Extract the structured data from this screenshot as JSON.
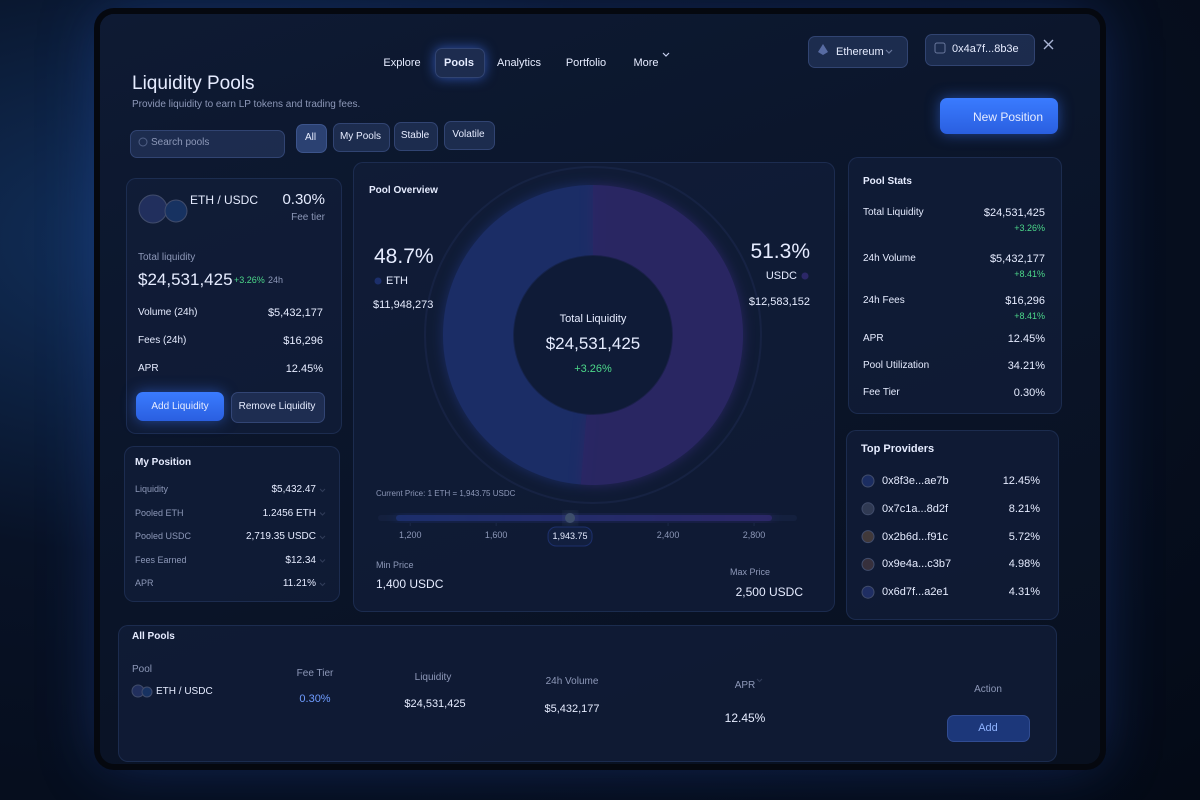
{
  "nav": {
    "items": [
      "Explore",
      "Pools",
      "Analytics",
      "Portfolio",
      "More"
    ],
    "active": 1
  },
  "network": "Ethereum",
  "wallet": "0x4a7f...8b3e",
  "header": {
    "title": "Liquidity Pools",
    "subtitle": "Provide liquidity to earn LP tokens and trading fees.",
    "new_position": "New Position"
  },
  "filters": {
    "search_placeholder": "Search pools",
    "tabs": [
      "All",
      "My Pools",
      "Stable",
      "Volatile"
    ],
    "active": 0
  },
  "pool_card": {
    "pair": "ETH / USDC",
    "fee": "0.30%",
    "fee_label": "Fee tier",
    "total_liquidity_label": "Total liquidity",
    "total_liquidity": "$24,531,425",
    "change": "+3.26%",
    "period": "24h",
    "rows": [
      [
        "Volume (24h)",
        "$5,432,177"
      ],
      [
        "Fees (24h)",
        "$16,296"
      ],
      [
        "APR",
        "12.45%"
      ]
    ],
    "buttons": [
      "Add Liquidity",
      "Remove Liquidity"
    ]
  },
  "my_position": {
    "title": "My Position",
    "rows": [
      [
        "Liquidity",
        "$5,432.47"
      ],
      [
        "Pooled ETH",
        "1.2456 ETH"
      ],
      [
        "Pooled USDC",
        "2,719.35 USDC"
      ],
      [
        "Fees Earned",
        "$12.34"
      ],
      [
        "APR",
        "11.21%"
      ]
    ]
  },
  "overview": {
    "title": "Pool Overview",
    "center_label": "Total Liquidity",
    "center_value": "$24,531,425",
    "center_change": "+3.26%",
    "segments": [
      {
        "name": "ETH",
        "value": 48.7,
        "value_label": "48.7%",
        "amount": "$11,948,273",
        "color": "#3d63ff"
      },
      {
        "name": "USDC",
        "value": 51.3,
        "value_label": "51.3%",
        "amount": "$12,583,152",
        "color": "#7a45f0"
      }
    ],
    "current_price": "Current Price: 1 ETH = 1,943.75 USDC",
    "price_scale": {
      "xlim": [
        1050,
        3000
      ],
      "xticks": [
        {
          "value": 1200,
          "label": "1,200"
        },
        {
          "value": 1600,
          "label": "1,600"
        },
        {
          "value": 2400,
          "label": "2,400"
        },
        {
          "value": 2800,
          "label": "2,800"
        }
      ],
      "current": {
        "value": 1943.75,
        "label": "1,943.75"
      }
    },
    "min_label": "Min Price",
    "min_value": "1,400 USDC",
    "max_label": "Max Price",
    "max_value": "2,500 USDC"
  },
  "pool_stats": {
    "title": "Pool Stats",
    "rows": [
      {
        "label": "Total Liquidity",
        "value": "$24,531,425",
        "change": "+3.26%"
      },
      {
        "label": "24h Volume",
        "value": "$5,432,177",
        "change": "+8.41%"
      },
      {
        "label": "24h Fees",
        "value": "$16,296",
        "change": "+8.41%"
      },
      {
        "label": "APR",
        "value": "12.45%"
      },
      {
        "label": "Pool Utilization",
        "value": "34.21%"
      },
      {
        "label": "Fee Tier",
        "value": "0.30%"
      }
    ]
  },
  "top_providers": {
    "title": "Top Providers",
    "rows": [
      [
        "0x8f3e...ae7b",
        "12.45%"
      ],
      [
        "0x7c1a...8d2f",
        "8.21%"
      ],
      [
        "0x2b6d...f91c",
        "5.72%"
      ],
      [
        "0x9e4a...c3b7",
        "4.98%"
      ],
      [
        "0x6d7f...a2e1",
        "4.31%"
      ]
    ]
  },
  "all_pools": {
    "title": "All Pools",
    "columns": [
      "Pool",
      "Fee Tier",
      "Liquidity",
      "24h Volume",
      "APR",
      "Action"
    ],
    "rows": [
      [
        "ETH / USDC",
        "0.30%",
        "$24,531,425",
        "$5,432,177",
        "12.45%",
        "Add"
      ]
    ]
  }
}
